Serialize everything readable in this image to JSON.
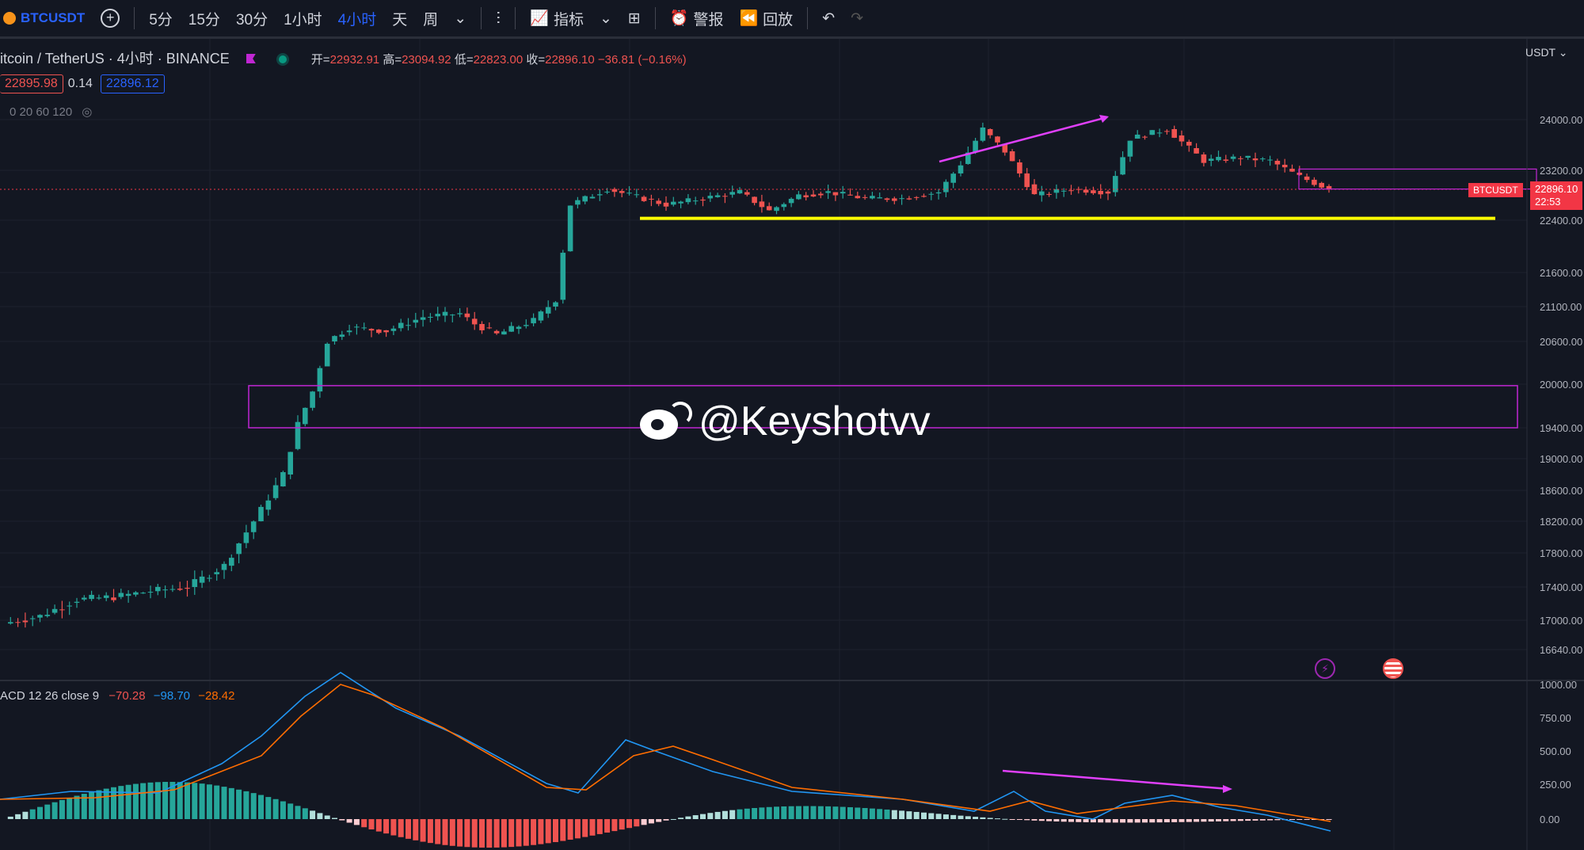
{
  "toolbar": {
    "symbol": "BTCUSDT",
    "intervals": [
      "5分",
      "15分",
      "30分",
      "1小时",
      "4小时",
      "天",
      "周"
    ],
    "active_interval": "4小时",
    "indicators_label": "指标",
    "alert_label": "警报",
    "replay_label": "回放"
  },
  "legend": {
    "title": "itcoin / TetherUS · 4小时 · BINANCE",
    "open_label": "开=",
    "open": "22932.91",
    "high_label": "高=",
    "high": "23094.92",
    "low_label": "低=",
    "low": "22823.00",
    "close_label": "收=",
    "close": "22896.10",
    "change": "−36.81 (−0.16%)",
    "bid": "22895.98",
    "spread": "0.14",
    "ask": "22896.12",
    "ma_label": "0 20 60 120"
  },
  "price_axis": {
    "currency": "USDT",
    "ticks": [
      "24000.00",
      "23200.00",
      "22400.00",
      "21600.00",
      "21100.00",
      "20600.00",
      "20000.00",
      "19400.00",
      "19000.00",
      "18600.00",
      "18200.00",
      "17800.00",
      "17400.00",
      "17000.00",
      "16640.00"
    ],
    "last_price": "22896.10",
    "countdown": "22:53",
    "symbol_tag": "BTCUSDT"
  },
  "macd": {
    "label": "ACD 12 26 close 9",
    "hist": "−70.28",
    "macd_value": "−98.70",
    "signal_value": "−28.42",
    "ticks": [
      "1000.00",
      "750.00",
      "500.00",
      "250.00",
      "0.00"
    ]
  },
  "watermark": "@Keyshotvv",
  "colors": {
    "up": "#26a69a",
    "down": "#ef5350",
    "bg": "#131722",
    "accent": "#2962ff",
    "support": "#ffff00",
    "zone": "#c026d3"
  },
  "chart_data": {
    "type": "candlestick",
    "interval": "4h",
    "ylim": [
      16500,
      24300
    ],
    "close_points": [
      [
        0,
        16960
      ],
      [
        5,
        17050
      ],
      [
        10,
        17250
      ],
      [
        15,
        17280
      ],
      [
        20,
        17350
      ],
      [
        25,
        17400
      ],
      [
        30,
        17650
      ],
      [
        34,
        18200
      ],
      [
        38,
        18800
      ],
      [
        40,
        19450
      ],
      [
        42,
        19900
      ],
      [
        44,
        20600
      ],
      [
        47,
        20800
      ],
      [
        52,
        20750
      ],
      [
        57,
        20950
      ],
      [
        62,
        21000
      ],
      [
        64,
        20850
      ],
      [
        67,
        20700
      ],
      [
        72,
        20900
      ],
      [
        75,
        21200
      ],
      [
        77,
        22650
      ],
      [
        82,
        22900
      ],
      [
        90,
        22650
      ],
      [
        100,
        22850
      ],
      [
        104,
        22550
      ],
      [
        108,
        22800
      ],
      [
        112,
        22850
      ],
      [
        117,
        22750
      ],
      [
        122,
        22750
      ],
      [
        127,
        22850
      ],
      [
        130,
        23300
      ],
      [
        133,
        23850
      ],
      [
        136,
        23500
      ],
      [
        140,
        22800
      ],
      [
        145,
        22900
      ],
      [
        150,
        22850
      ],
      [
        153,
        23700
      ],
      [
        158,
        23850
      ],
      [
        163,
        23350
      ],
      [
        168,
        23400
      ],
      [
        172,
        23350
      ],
      [
        176,
        23100
      ],
      [
        180,
        22896
      ]
    ],
    "support_line": 22430,
    "zone": [
      19400,
      19980
    ],
    "prev_zone": [
      22900,
      23220
    ]
  }
}
